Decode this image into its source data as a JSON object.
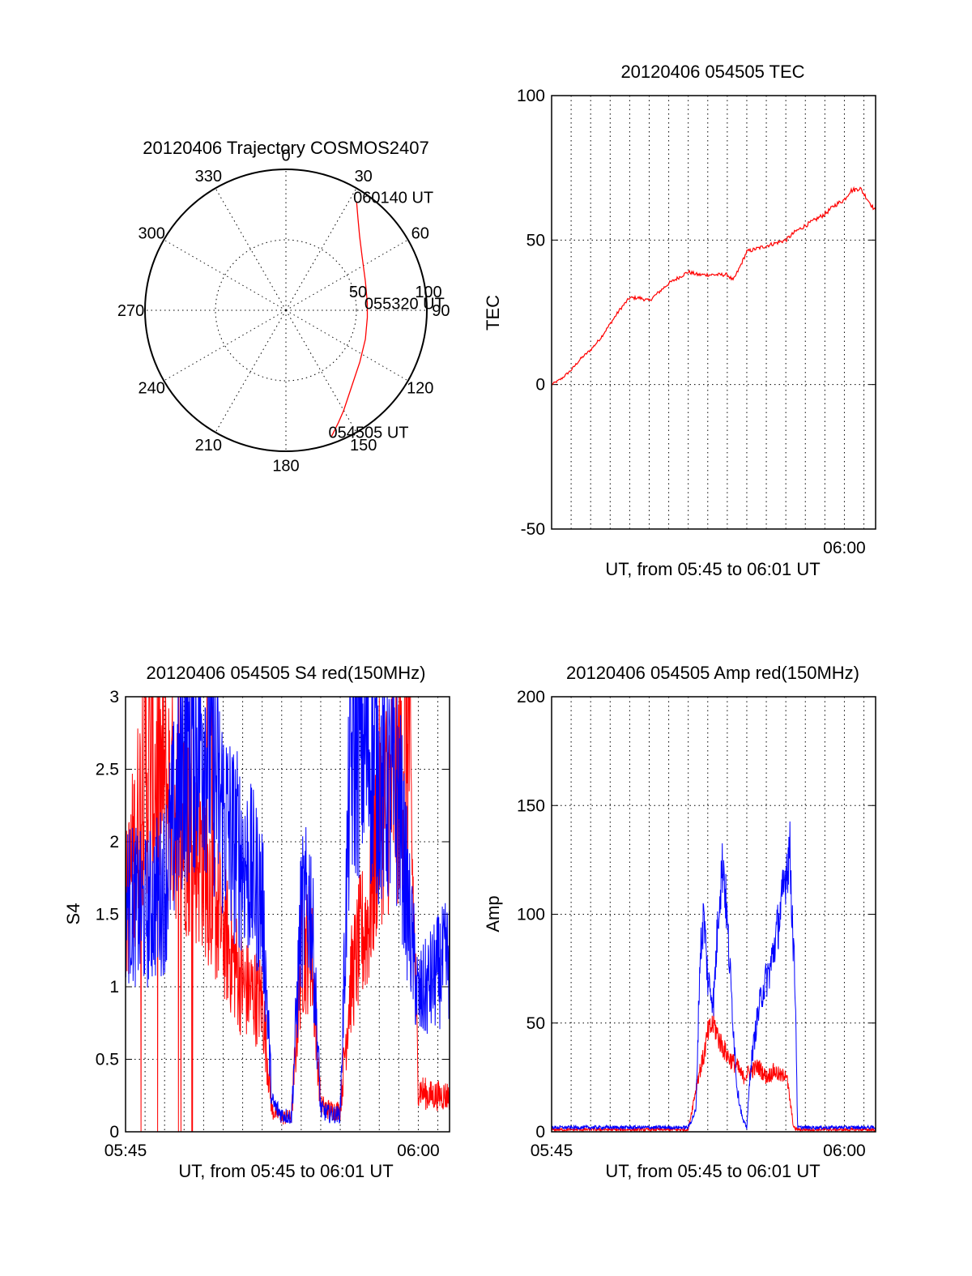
{
  "colors": {
    "red": "#ff0000",
    "blue": "#0000ff",
    "axes": "#000000"
  },
  "chart_data": [
    {
      "id": "trajectory",
      "type": "polar",
      "title": "20120406 Trajectory COSMOS2407",
      "angle_labels": [
        "0",
        "30",
        "60",
        "90",
        "120",
        "150",
        "180",
        "210",
        "240",
        "270",
        "300",
        "330"
      ],
      "radius_labels": [
        "50",
        "100"
      ],
      "grid": true,
      "series": [
        {
          "color": "red",
          "points_az_r": [
            [
              160,
              95
            ],
            [
              155,
              88
            ],
            [
              150,
              82
            ],
            [
              140,
              72
            ],
            [
              125,
              64
            ],
            [
              110,
              60
            ],
            [
              95,
              58
            ],
            [
              85,
              58
            ],
            [
              70,
              60
            ],
            [
              55,
              66
            ],
            [
              45,
              74
            ],
            [
              38,
              83
            ],
            [
              33,
              92
            ]
          ]
        }
      ],
      "annotations": [
        {
          "text": "060140 UT",
          "az": 33,
          "r": 92
        },
        {
          "text": "055320 UT",
          "az": 88,
          "r": 58
        },
        {
          "text": "054505 UT",
          "az": 160,
          "r": 95
        }
      ]
    },
    {
      "id": "tec",
      "type": "line",
      "title": "20120406 054505 TEC",
      "xlabel": "UT, from 05:45 to 06:01 UT",
      "ylabel": "TEC",
      "xlim": [
        0,
        16.6
      ],
      "ylim": [
        -50,
        100
      ],
      "yticks": [
        -50,
        0,
        50,
        100
      ],
      "xtick_labels": [
        {
          "x": 15,
          "label": "06:00"
        }
      ],
      "grid": true,
      "series": [
        {
          "color": "red",
          "x": [
            0,
            0.5,
            1.0,
            1.5,
            2.0,
            2.5,
            3.0,
            3.5,
            4.0,
            4.5,
            5.0,
            5.5,
            6.0,
            6.5,
            7.0,
            7.5,
            8.0,
            8.5,
            9.0,
            9.3,
            9.6,
            10.0,
            10.5,
            11.0,
            11.5,
            12.0,
            12.5,
            13.0,
            13.5,
            14.0,
            14.5,
            15.0,
            15.3,
            15.8,
            16.6
          ],
          "y": [
            0,
            2,
            5,
            9,
            12,
            16,
            21,
            26,
            30,
            30,
            29,
            32,
            35,
            37,
            39,
            38,
            38,
            38,
            38,
            36,
            40,
            46,
            47,
            48,
            49,
            50,
            53,
            55,
            57,
            59,
            62,
            64,
            67,
            68,
            60
          ]
        }
      ]
    },
    {
      "id": "s4",
      "type": "line",
      "title": "20120406 054505 S4 red(150MHz)",
      "xlabel": "UT, from 05:45 to 06:01 UT",
      "ylabel": "S4",
      "xlim": [
        0,
        16.6
      ],
      "ylim": [
        0,
        3
      ],
      "yticks": [
        0,
        0.5,
        1,
        1.5,
        2,
        2.5,
        3
      ],
      "ytick_labels": [
        "0",
        "0.5",
        "1",
        "1.5",
        "2",
        "2.5",
        "3"
      ],
      "xtick_labels": [
        {
          "x": 0,
          "label": "05:45"
        },
        {
          "x": 15,
          "label": "06:00"
        }
      ],
      "grid": true,
      "series": [
        {
          "color": "red",
          "x": [
            0,
            1,
            2,
            3,
            4,
            4.5,
            5,
            5.5,
            6,
            7,
            7.5,
            8,
            8.5,
            9,
            9.5,
            10,
            10.5,
            11,
            11.5,
            12,
            12.5,
            13,
            14,
            14.5,
            15,
            15.5,
            16,
            16.6
          ],
          "y": [
            1.5,
            2.5,
            2.4,
            2.1,
            1.9,
            1.6,
            1.4,
            1.2,
            1.0,
            0.9,
            0.15,
            0.1,
            0.1,
            1.2,
            1.3,
            0.18,
            0.15,
            0.15,
            1.0,
            1.3,
            1.5,
            2.2,
            2.4,
            2.8,
            0.3,
            0.25,
            0.25,
            0.25
          ]
        },
        {
          "color": "blue",
          "x": [
            0,
            1,
            2,
            3,
            4,
            4.5,
            5,
            5.5,
            6,
            7,
            7.5,
            8,
            8.5,
            9,
            9.5,
            10,
            10.5,
            11,
            11.5,
            12,
            12.5,
            13,
            14,
            14.5,
            15,
            15.5,
            16,
            16.6
          ],
          "y": [
            1.6,
            1.5,
            1.7,
            2.6,
            2.8,
            2.5,
            2.2,
            2.0,
            1.9,
            1.6,
            0.2,
            0.12,
            0.1,
            1.5,
            1.6,
            0.15,
            0.12,
            0.12,
            2.5,
            2.7,
            2.6,
            2.4,
            2.3,
            1.5,
            0.9,
            1.0,
            1.1,
            1.2
          ]
        }
      ]
    },
    {
      "id": "amp",
      "type": "line",
      "title": "20120406 054505 Amp red(150MHz)",
      "xlabel": "UT, from 05:45 to 06:01 UT",
      "ylabel": "Amp",
      "xlim": [
        0,
        16.6
      ],
      "ylim": [
        0,
        200
      ],
      "yticks": [
        0,
        50,
        100,
        150,
        200
      ],
      "xtick_labels": [
        {
          "x": 0,
          "label": "05:45"
        },
        {
          "x": 15,
          "label": "06:00"
        }
      ],
      "grid": true,
      "series": [
        {
          "color": "red",
          "x": [
            0,
            7.0,
            7.5,
            7.8,
            8.0,
            8.3,
            8.6,
            9.0,
            9.5,
            9.8,
            10.2,
            10.6,
            11.0,
            11.4,
            11.8,
            12.0,
            12.4,
            12.6,
            16.6
          ],
          "y": [
            1,
            1,
            25,
            35,
            45,
            50,
            42,
            35,
            30,
            25,
            28,
            30,
            25,
            28,
            25,
            28,
            2,
            1,
            1
          ]
        },
        {
          "color": "blue",
          "x": [
            0,
            7.0,
            7.4,
            7.6,
            7.8,
            8.0,
            8.3,
            8.6,
            8.8,
            9.0,
            9.3,
            9.5,
            9.8,
            10.0,
            10.2,
            10.5,
            10.8,
            11.2,
            11.5,
            11.8,
            12.0,
            12.2,
            12.5,
            12.6,
            16.6
          ],
          "y": [
            2,
            2,
            10,
            80,
            100,
            70,
            60,
            110,
            125,
            95,
            50,
            20,
            5,
            2,
            30,
            50,
            65,
            75,
            90,
            105,
            120,
            130,
            60,
            2,
            2
          ]
        }
      ]
    }
  ]
}
